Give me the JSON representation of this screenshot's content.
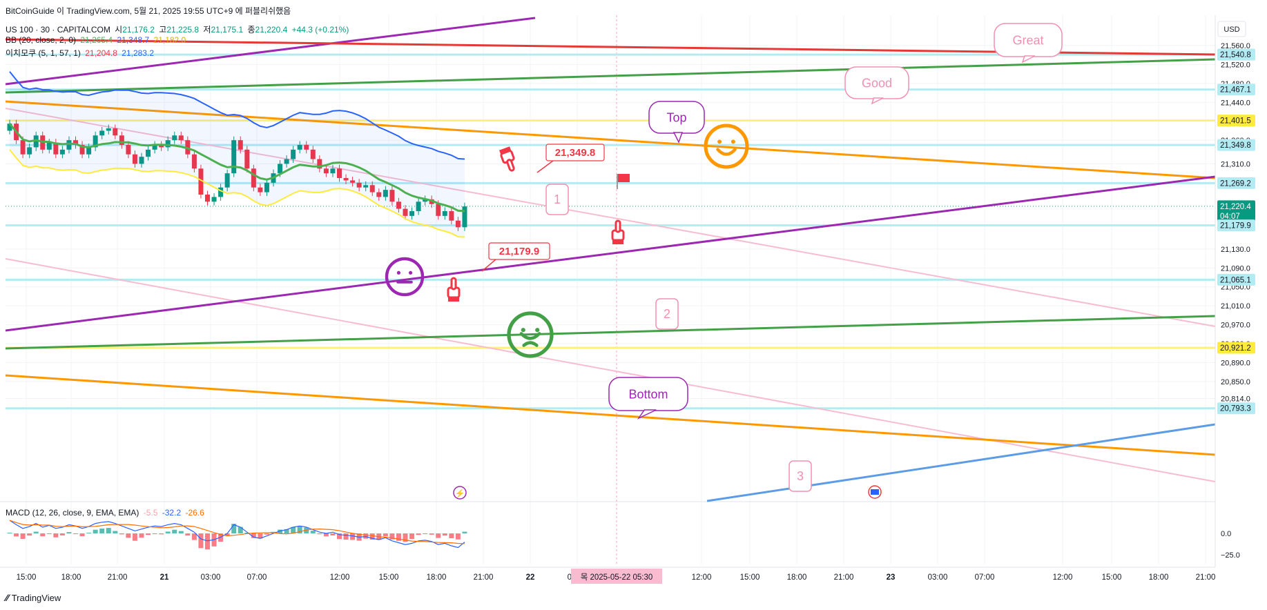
{
  "header": {
    "publish_line": "BitCoinGuide 이 TradingView.com, 5월 21, 2025 19:55 UTC+9 에 퍼블리쉬했음",
    "symbol_line": {
      "symbol": "US 100 · 30 · CAPITALCOM",
      "o_label": "시",
      "o": "21,176.2",
      "h_label": "고",
      "h": "21,225.8",
      "l_label": "저",
      "l": "21,175.1",
      "c_label": "종",
      "c": "21,220.4",
      "change": "+44.3 (+0.21%)"
    },
    "bb_line": {
      "name": "BB (20, close, 2, 0)",
      "basis": "21,265.4",
      "upper": "21,348.7",
      "lower": "21,182.0"
    },
    "ichimoku_line": {
      "name": "이치모쿠 (5, 1, 57, 1)",
      "v1": "21,204.8",
      "v2": "21,283.2"
    },
    "macd_line": {
      "name": "MACD (12, 26, close, 9, EMA, EMA)",
      "hist": "-5.5",
      "macd": "-32.2",
      "signal": "-26.6"
    }
  },
  "colors": {
    "up": "#089981",
    "down": "#f23645",
    "bb_upper": "#2962ff",
    "bb_basis": "#4caf50",
    "bb_lower": "#ffeb3b",
    "purple": "#9c27b0",
    "orange": "#ff9800",
    "green": "#43a047",
    "red": "#e53935",
    "pink": "#f8bbd0",
    "cyan": "#b2ebf2",
    "blue": "#5c9ce6"
  },
  "chart_data": {
    "type": "candlestick",
    "currency": "USD",
    "y_ticks": [
      "21,560.0",
      "21,520.0",
      "21,480.0",
      "21,440.0",
      "21,360.0",
      "21,310.0",
      "21,130.0",
      "21,090.0",
      "21,050.0",
      "21,010.0",
      "20,970.0",
      "20,930.0",
      "20,890.0",
      "20,850.0",
      "20,814.0"
    ],
    "price_tags": [
      {
        "label": "21,540.8",
        "style": "cyan"
      },
      {
        "label": "21,467.1",
        "style": "cyan"
      },
      {
        "label": "21,401.5",
        "style": "yellow"
      },
      {
        "label": "21,349.8",
        "style": "cyan"
      },
      {
        "label": "21,269.2",
        "style": "cyan"
      },
      {
        "label": "21,220.4",
        "sub": "04:07",
        "style": "current"
      },
      {
        "label": "21,179.9",
        "style": "cyan"
      },
      {
        "label": "21,065.1",
        "style": "cyan"
      },
      {
        "label": "20,921.2",
        "style": "yellow"
      },
      {
        "label": "20,793.3",
        "style": "cyan"
      }
    ],
    "x_ticks": [
      "15:00",
      "18:00",
      "21:00",
      "21",
      "03:00",
      "07:00",
      "12:00",
      "15:00",
      "18:00",
      "21:00",
      "22",
      "03:00",
      "12:00",
      "15:00",
      "18:00",
      "21:00",
      "23",
      "03:00",
      "07:00",
      "12:00",
      "15:00",
      "18:00",
      "21:00"
    ],
    "crosshair_label": "목 2025-05-22  05:30",
    "macd_ticks": [
      "0.0",
      "−25.0"
    ],
    "annotations": {
      "great": "Great",
      "good": "Good",
      "top": "Top",
      "bottom": "Bottom",
      "level_high": "21,349.8",
      "level_low": "21,179.9",
      "wave1": "1",
      "wave2": "2",
      "wave3": "3"
    }
  },
  "footer": {
    "brand": "TradingView"
  }
}
